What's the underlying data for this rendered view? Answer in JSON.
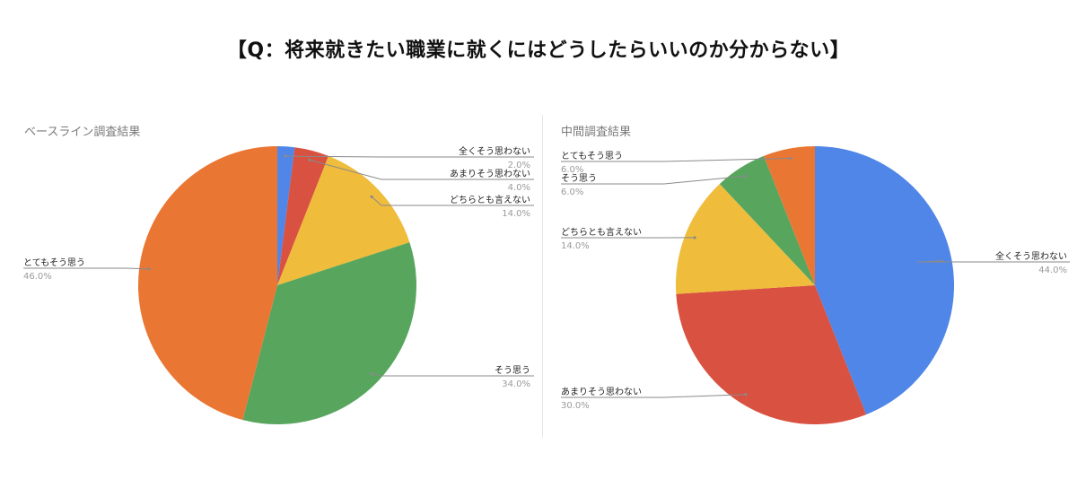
{
  "title": "【Q：将来就きたい職業に就くにはどうしたらいいのか分からない】",
  "chart_data": [
    {
      "type": "pie",
      "title": "ベースライン調査結果",
      "slices": [
        {
          "label": "全くそう思わない",
          "value": 2.0,
          "pct_text": "2.0%",
          "color": "#4f86e8"
        },
        {
          "label": "あまりそう思わない",
          "value": 4.0,
          "pct_text": "4.0%",
          "color": "#d95140"
        },
        {
          "label": "どちらとも言えない",
          "value": 14.0,
          "pct_text": "14.0%",
          "color": "#efbc3c"
        },
        {
          "label": "そう思う",
          "value": 34.0,
          "pct_text": "34.0%",
          "color": "#58a55e"
        },
        {
          "label": "とてもそう思う",
          "value": 46.0,
          "pct_text": "46.0%",
          "color": "#ea7633"
        }
      ]
    },
    {
      "type": "pie",
      "title": "中間調査結果",
      "slices": [
        {
          "label": "全くそう思わない",
          "value": 44.0,
          "pct_text": "44.0%",
          "color": "#4f86e8"
        },
        {
          "label": "あまりそう思わない",
          "value": 30.0,
          "pct_text": "30.0%",
          "color": "#d95140"
        },
        {
          "label": "どちらとも言えない",
          "value": 14.0,
          "pct_text": "14.0%",
          "color": "#efbc3c"
        },
        {
          "label": "そう思う",
          "value": 6.0,
          "pct_text": "6.0%",
          "color": "#58a55e"
        },
        {
          "label": "とてもそう思う",
          "value": 6.0,
          "pct_text": "6.0%",
          "color": "#ea7633"
        }
      ]
    }
  ]
}
